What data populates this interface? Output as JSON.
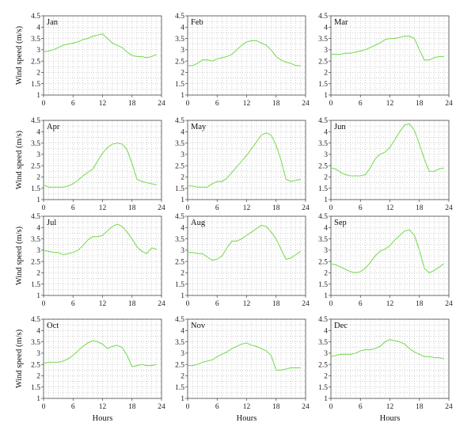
{
  "colors": {
    "series": "#7fdc5a"
  },
  "chart_data": {
    "type": "line",
    "layout": "4x3 small multiples",
    "xlabel": "Hours",
    "ylabel": "Wind speed (m/s)",
    "xlim": [
      0,
      24
    ],
    "ylim": [
      1,
      4.5
    ],
    "xticks": [
      0,
      6,
      12,
      18,
      24
    ],
    "yticks": [
      1,
      1.5,
      2,
      2.5,
      3,
      3.5,
      4,
      4.5
    ],
    "grid": true,
    "x": [
      0,
      1,
      2,
      3,
      4,
      5,
      6,
      7,
      8,
      9,
      10,
      11,
      12,
      13,
      14,
      15,
      16,
      17,
      18,
      19,
      20,
      21,
      22,
      23
    ],
    "panels": [
      {
        "month": "Jan",
        "values": [
          2.9,
          2.95,
          3.0,
          3.1,
          3.2,
          3.25,
          3.3,
          3.35,
          3.45,
          3.5,
          3.6,
          3.65,
          3.7,
          3.5,
          3.3,
          3.2,
          3.1,
          2.9,
          2.75,
          2.7,
          2.7,
          2.65,
          2.7,
          2.8
        ]
      },
      {
        "month": "Feb",
        "values": [
          2.3,
          2.3,
          2.4,
          2.55,
          2.55,
          2.5,
          2.6,
          2.65,
          2.7,
          2.8,
          3.0,
          3.2,
          3.35,
          3.4,
          3.4,
          3.3,
          3.2,
          3.0,
          2.7,
          2.55,
          2.45,
          2.4,
          2.3,
          2.3
        ]
      },
      {
        "month": "Mar",
        "values": [
          2.8,
          2.8,
          2.8,
          2.85,
          2.85,
          2.9,
          2.95,
          3.0,
          3.1,
          3.2,
          3.3,
          3.45,
          3.5,
          3.5,
          3.55,
          3.6,
          3.6,
          3.5,
          3.0,
          2.55,
          2.55,
          2.65,
          2.7,
          2.7
        ]
      },
      {
        "month": "Apr",
        "values": [
          1.65,
          1.55,
          1.55,
          1.55,
          1.55,
          1.6,
          1.7,
          1.85,
          2.05,
          2.2,
          2.35,
          2.7,
          3.05,
          3.3,
          3.45,
          3.5,
          3.45,
          3.2,
          2.6,
          1.9,
          1.8,
          1.75,
          1.7,
          1.65
        ]
      },
      {
        "month": "May",
        "values": [
          1.6,
          1.6,
          1.55,
          1.55,
          1.55,
          1.7,
          1.8,
          1.8,
          1.95,
          2.2,
          2.45,
          2.7,
          2.95,
          3.25,
          3.55,
          3.85,
          3.95,
          3.85,
          3.4,
          2.75,
          1.9,
          1.8,
          1.85,
          1.9
        ]
      },
      {
        "month": "Jun",
        "values": [
          2.4,
          2.35,
          2.2,
          2.1,
          2.05,
          2.05,
          2.05,
          2.1,
          2.4,
          2.8,
          3.0,
          3.1,
          3.3,
          3.65,
          4.0,
          4.3,
          4.35,
          4.05,
          3.45,
          2.8,
          2.25,
          2.25,
          2.35,
          2.4
        ]
      },
      {
        "month": "Jul",
        "values": [
          3.0,
          2.95,
          2.9,
          2.9,
          2.8,
          2.85,
          2.9,
          3.0,
          3.2,
          3.45,
          3.6,
          3.6,
          3.65,
          3.85,
          4.05,
          4.15,
          4.05,
          3.8,
          3.5,
          3.15,
          2.95,
          2.85,
          3.1,
          3.05
        ]
      },
      {
        "month": "Aug",
        "values": [
          2.9,
          2.9,
          2.85,
          2.85,
          2.7,
          2.55,
          2.6,
          2.75,
          3.1,
          3.4,
          3.4,
          3.5,
          3.65,
          3.8,
          3.95,
          4.1,
          4.05,
          3.8,
          3.5,
          3.05,
          2.6,
          2.65,
          2.8,
          2.95
        ]
      },
      {
        "month": "Sep",
        "values": [
          2.4,
          2.35,
          2.25,
          2.15,
          2.05,
          2.0,
          2.05,
          2.2,
          2.45,
          2.75,
          2.95,
          3.05,
          3.2,
          3.45,
          3.65,
          3.85,
          3.9,
          3.65,
          3.0,
          2.2,
          2.0,
          2.1,
          2.25,
          2.4
        ]
      },
      {
        "month": "Oct",
        "values": [
          2.55,
          2.6,
          2.6,
          2.6,
          2.65,
          2.75,
          2.9,
          3.1,
          3.3,
          3.45,
          3.55,
          3.5,
          3.4,
          3.2,
          3.3,
          3.35,
          3.25,
          2.9,
          2.4,
          2.45,
          2.5,
          2.45,
          2.45,
          2.5
        ]
      },
      {
        "month": "Nov",
        "values": [
          2.45,
          2.45,
          2.5,
          2.6,
          2.65,
          2.7,
          2.85,
          2.95,
          3.05,
          3.2,
          3.3,
          3.4,
          3.45,
          3.35,
          3.3,
          3.2,
          3.1,
          2.9,
          2.25,
          2.25,
          2.3,
          2.35,
          2.35,
          2.35
        ]
      },
      {
        "month": "Dec",
        "values": [
          2.85,
          2.9,
          2.95,
          2.95,
          2.95,
          3.0,
          3.1,
          3.15,
          3.15,
          3.2,
          3.3,
          3.5,
          3.6,
          3.55,
          3.5,
          3.4,
          3.2,
          3.05,
          2.95,
          2.85,
          2.85,
          2.8,
          2.8,
          2.75
        ]
      }
    ]
  }
}
